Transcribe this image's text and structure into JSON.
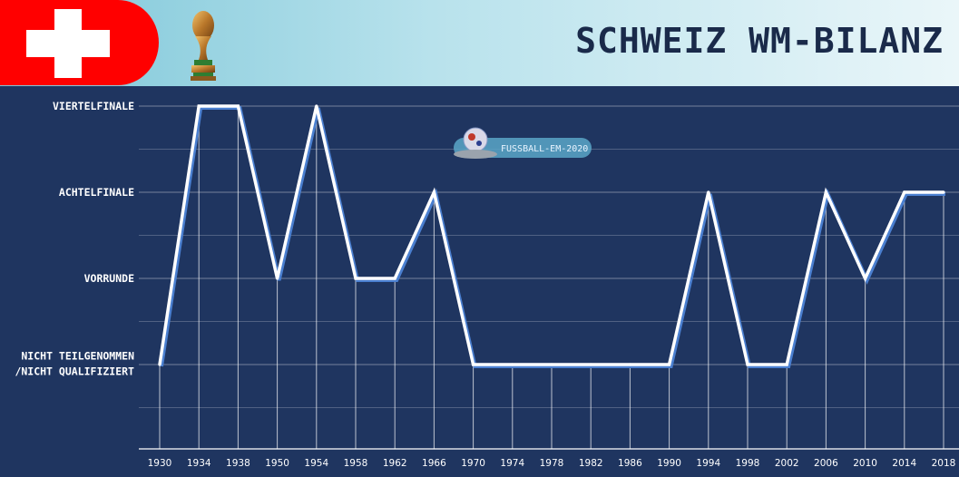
{
  "header": {
    "title": "SCHWEIZ WM-BILANZ",
    "flag_icon": "swiss-flag-icon",
    "trophy_icon": "world-cup-trophy-icon"
  },
  "watermark": {
    "text": "FUSSBALL-EM-2020"
  },
  "colors": {
    "background": "#1f3560",
    "line": "#ffffff",
    "line_shadow": "#4a7fd0",
    "header_gradient_start": "#8fd0df",
    "header_gradient_end": "#e6f4f8",
    "flag_red": "#ff0000"
  },
  "chart_data": {
    "type": "line",
    "title": "SCHWEIZ WM-BILANZ",
    "xlabel": "",
    "ylabel": "",
    "categories": [
      "1930",
      "1934",
      "1938",
      "1950",
      "1954",
      "1958",
      "1962",
      "1966",
      "1970",
      "1974",
      "1978",
      "1982",
      "1986",
      "1990",
      "1994",
      "1998",
      "2002",
      "2006",
      "2010",
      "2014",
      "2018"
    ],
    "y_levels": [
      "NICHT TEILGENOMMEN /NICHT QUALIFIZIERT",
      "VORRUNDE",
      "ACHTELFINALE",
      "VIERTELFINALE"
    ],
    "y_level_lines": [
      [
        "NICHT TEILGENOMMEN",
        "/NICHT QUALIFIZIERT"
      ],
      [
        "VORRUNDE"
      ],
      [
        "ACHTELFINALE"
      ],
      [
        "VIERTELFINALE"
      ]
    ],
    "series": [
      {
        "values": [
          0,
          3,
          3,
          1,
          3,
          1,
          1,
          2,
          0,
          0,
          0,
          0,
          0,
          0,
          2,
          0,
          0,
          2,
          1,
          2,
          2
        ]
      }
    ],
    "ylim": [
      -1,
      3.2
    ],
    "grid": true
  }
}
